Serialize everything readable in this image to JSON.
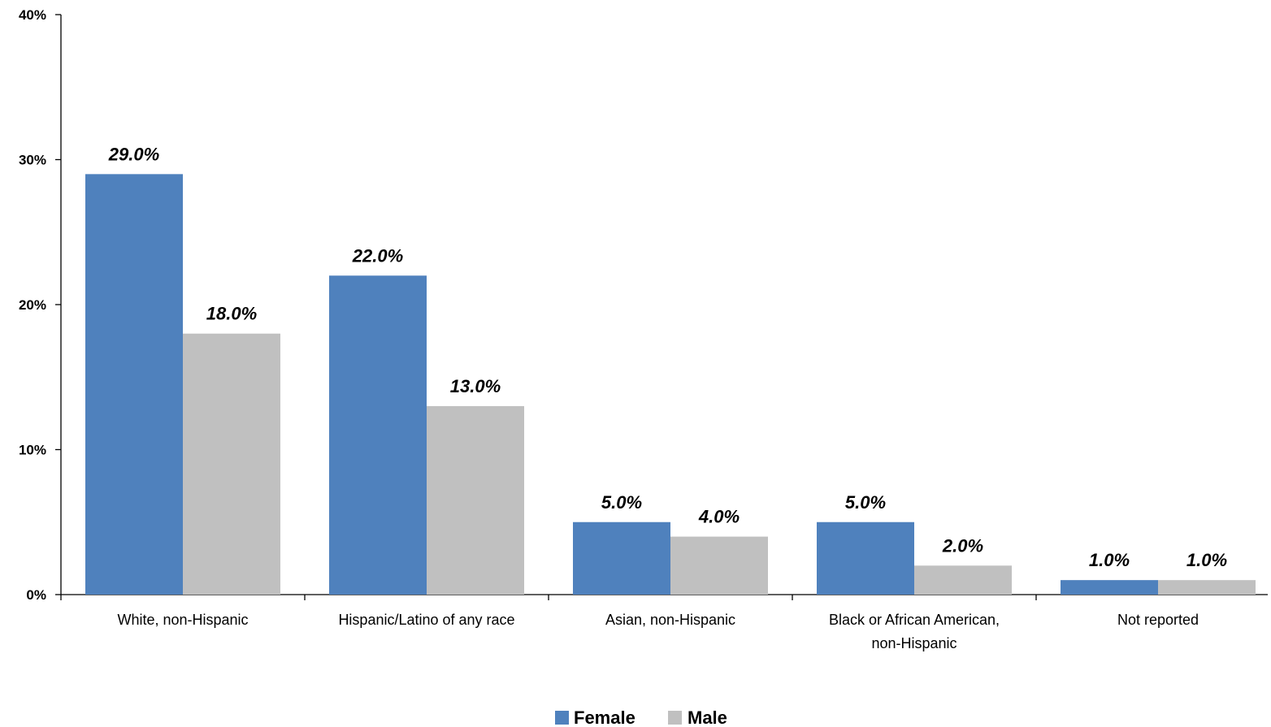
{
  "chart_data": {
    "type": "bar",
    "categories": [
      [
        "White, non-Hispanic"
      ],
      [
        "Hispanic/Latino of any race"
      ],
      [
        "Asian, non-Hispanic"
      ],
      [
        "Black or African American,",
        "non-Hispanic"
      ],
      [
        "Not reported"
      ]
    ],
    "series": [
      {
        "name": "Female",
        "color": "#4F81BD",
        "values": [
          29.0,
          22.0,
          5.0,
          5.0,
          1.0
        ],
        "labels": [
          "29.0%",
          "22.0%",
          "5.0%",
          "5.0%",
          "1.0%"
        ]
      },
      {
        "name": "Male",
        "color": "#C0C0C0",
        "values": [
          18.0,
          13.0,
          4.0,
          2.0,
          1.0
        ],
        "labels": [
          "18.0%",
          "13.0%",
          "4.0%",
          "2.0%",
          "1.0%"
        ]
      }
    ],
    "ylim": [
      0,
      40
    ],
    "yticks": [
      0,
      10,
      20,
      30,
      40
    ],
    "ytick_labels": [
      "0%",
      "10%",
      "20%",
      "30%",
      "40%"
    ],
    "title": "",
    "xlabel": "",
    "ylabel": "",
    "grid": false,
    "legend": "bottom-center"
  }
}
